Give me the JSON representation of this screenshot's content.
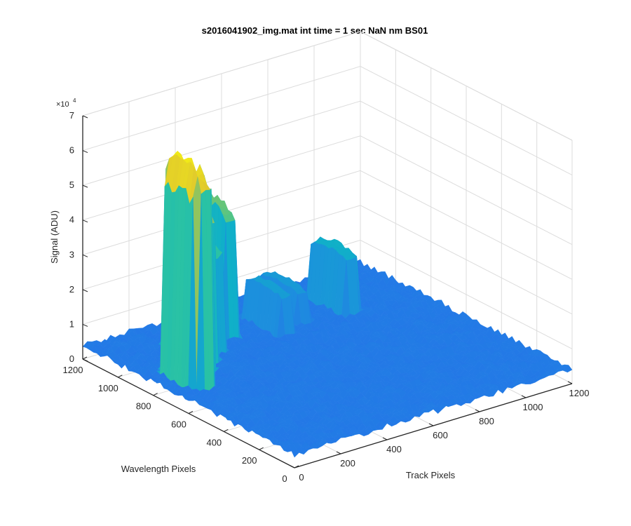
{
  "chart_data": {
    "type": "surface",
    "title": "s2016041902_img.mat int time = 1 sec  NaN nm BS01",
    "xlabel": "Track Pixels",
    "ylabel": "Wavelength Pixels",
    "zlabel": "Signal (ADU)",
    "zexponent_base": "×10",
    "zexponent_power": "4",
    "xlim": [
      0,
      1200
    ],
    "ylim": [
      0,
      1200
    ],
    "zlim": [
      0,
      70000
    ],
    "xticks": [
      "0",
      "200",
      "400",
      "600",
      "800",
      "1000",
      "1200"
    ],
    "yticks": [
      "0",
      "200",
      "400",
      "600",
      "800",
      "1000",
      "1200"
    ],
    "zticks": [
      "0",
      "1",
      "2",
      "3",
      "4",
      "5",
      "6",
      "7"
    ],
    "grid": true,
    "colormap": [
      "#3e26a8",
      "#2a5ff0",
      "#1d8ede",
      "#10b0c8",
      "#2ec59f",
      "#8bc561",
      "#d9b936",
      "#f9fb0e"
    ],
    "baseline_signal": 3000,
    "peaks": [
      {
        "x": 115,
        "y": 760,
        "height": 68000
      },
      {
        "x": 200,
        "y": 860,
        "height": 62000
      },
      {
        "x": 260,
        "y": 930,
        "height": 50000
      },
      {
        "x": 340,
        "y": 990,
        "height": 36000
      },
      {
        "x": 440,
        "y": 1050,
        "height": 43000
      },
      {
        "x": 620,
        "y": 960,
        "height": 16000
      },
      {
        "x": 720,
        "y": 1010,
        "height": 14000
      },
      {
        "x": 905,
        "y": 960,
        "height": 22000
      }
    ]
  }
}
